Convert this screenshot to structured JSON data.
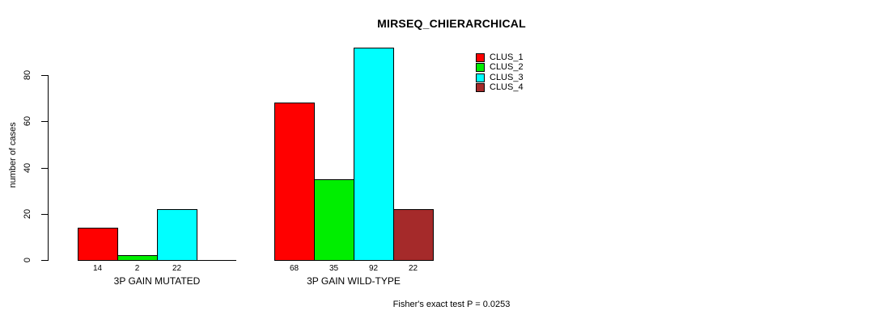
{
  "chart_data": {
    "type": "bar",
    "title": "MIRSEQ_CHIERARCHICAL",
    "xlabel": "",
    "ylabel": "number of cases",
    "ylim": [
      0,
      92
    ],
    "yticks": [
      0,
      20,
      40,
      60,
      80
    ],
    "grid": false,
    "legend_position": "top-right",
    "categories": [
      "3P GAIN MUTATED",
      "3P GAIN WILD-TYPE"
    ],
    "series": [
      {
        "name": "CLUS_1",
        "color": "#FF0000",
        "values": [
          14,
          68
        ]
      },
      {
        "name": "CLUS_2",
        "color": "#00EE00",
        "values": [
          2,
          35
        ]
      },
      {
        "name": "CLUS_3",
        "color": "#00FFFF",
        "values": [
          22,
          92
        ]
      },
      {
        "name": "CLUS_4",
        "color": "#A52A2A",
        "values": [
          0,
          22
        ]
      }
    ],
    "bar_labels": [
      [
        "14",
        "2",
        "22",
        ""
      ],
      [
        "68",
        "35",
        "92",
        "22"
      ]
    ],
    "annotation": "Fisher's exact test P = 0.0253",
    "colors": {
      "background": "#FFFFFF",
      "axis": "#000000",
      "text": "#000000"
    }
  }
}
